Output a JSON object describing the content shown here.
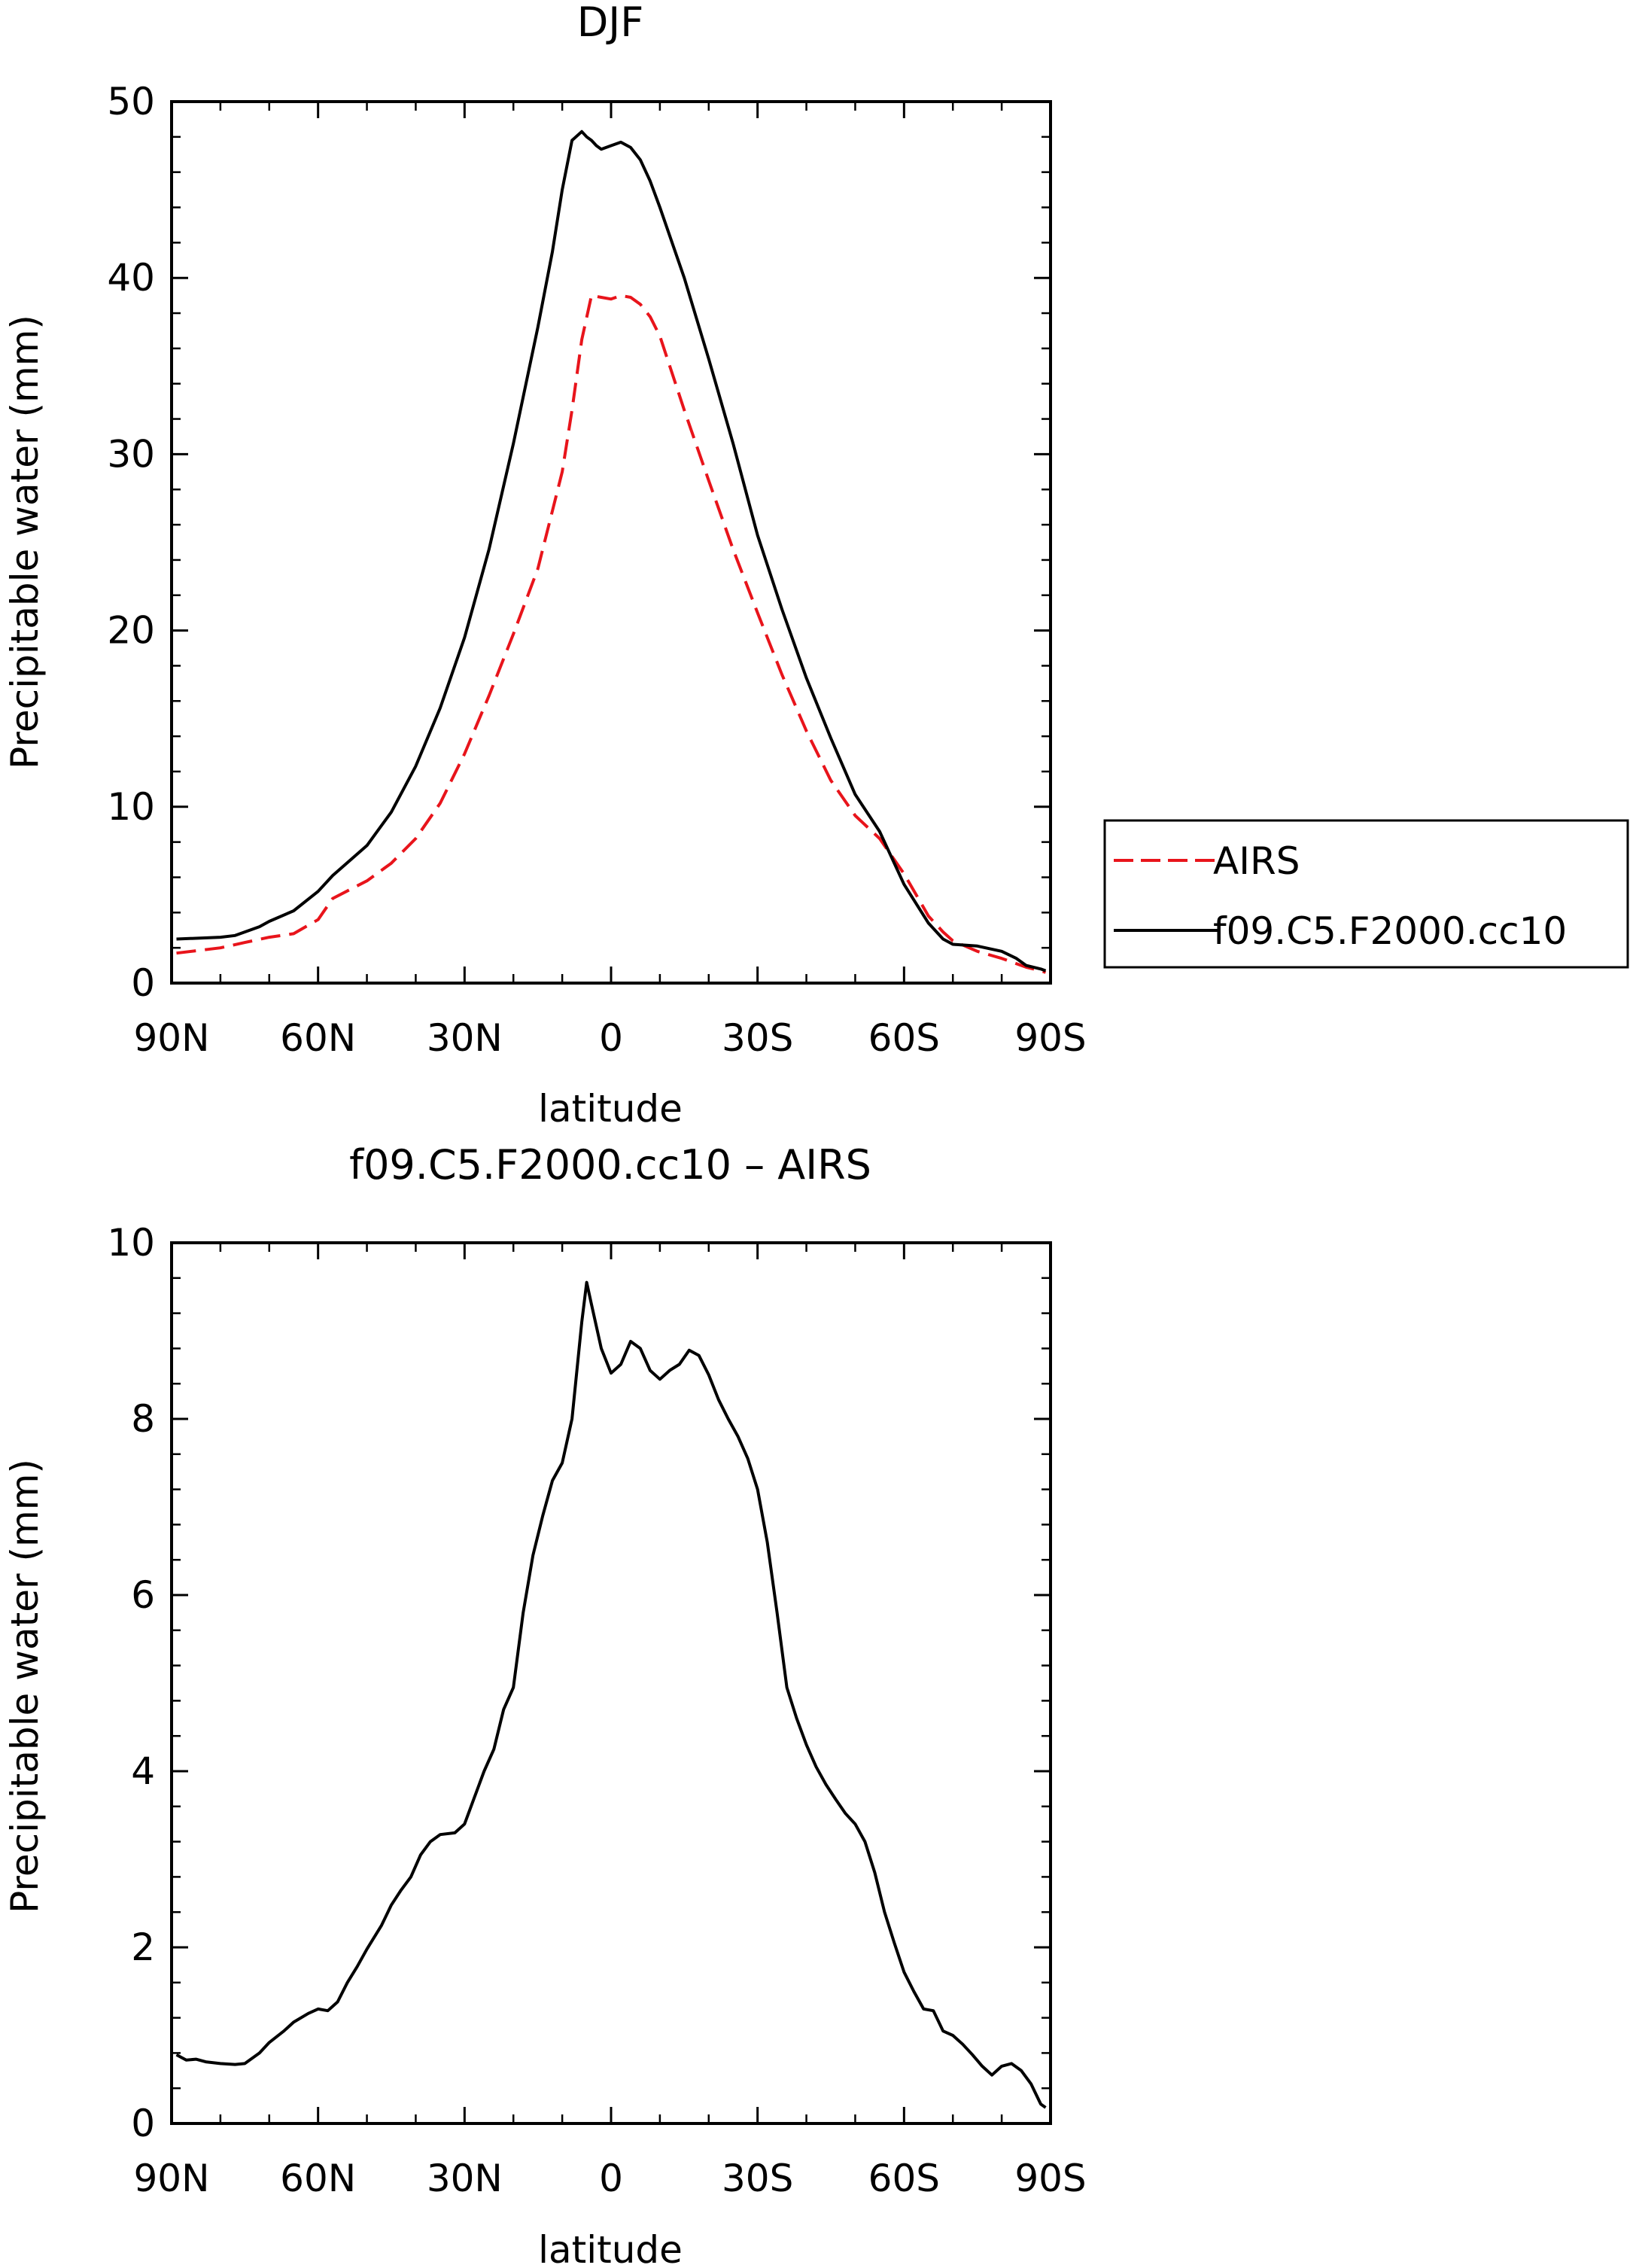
{
  "chart_data": [
    {
      "type": "line",
      "title": "DJF",
      "xlabel": "latitude",
      "ylabel": "Precipitable water  (mm)",
      "xlim": [
        -90,
        90
      ],
      "ylim": [
        0,
        50
      ],
      "x_ticks": [
        -90,
        -60,
        -30,
        0,
        30,
        60,
        90
      ],
      "x_tick_labels": [
        "90N",
        "60N",
        "30N",
        "0",
        "30S",
        "60S",
        "90S"
      ],
      "y_ticks": [
        0,
        10,
        20,
        30,
        40,
        50
      ],
      "y_tick_labels": [
        "0",
        "10",
        "20",
        "30",
        "40",
        "50"
      ],
      "legend_placement": "right",
      "series": [
        {
          "name": "AIRS",
          "color": "#e8141b",
          "dash": "dashed",
          "x": [
            -89,
            -80,
            -75,
            -70,
            -65,
            -60,
            -57,
            -50,
            -45,
            -40,
            -35,
            -30,
            -25,
            -20,
            -15,
            -10,
            -8,
            -6,
            -4,
            -2,
            0,
            2,
            4,
            6,
            8,
            10,
            15,
            20,
            25,
            30,
            35,
            40,
            45,
            50,
            55,
            60,
            65,
            68,
            70,
            75,
            80,
            85,
            88,
            89
          ],
          "y": [
            1.7,
            2.0,
            2.3,
            2.6,
            2.8,
            3.6,
            4.8,
            5.8,
            6.8,
            8.2,
            10.2,
            13.0,
            16.3,
            19.8,
            23.5,
            29.0,
            32.5,
            36.5,
            39.0,
            38.9,
            38.8,
            39.0,
            38.9,
            38.5,
            37.8,
            36.7,
            32.5,
            28.5,
            24.6,
            21.0,
            17.5,
            14.3,
            11.5,
            9.5,
            8.2,
            6.2,
            3.8,
            2.9,
            2.4,
            1.8,
            1.4,
            0.9,
            0.7,
            0.6
          ]
        },
        {
          "name": "f09.C5.F2000.cc10",
          "color": "#000000",
          "dash": "solid",
          "x": [
            -89,
            -80,
            -77,
            -75,
            -72,
            -70,
            -65,
            -60,
            -57,
            -50,
            -45,
            -40,
            -35,
            -30,
            -25,
            -20,
            -15,
            -12,
            -10,
            -8,
            -6,
            -5,
            -4,
            -3,
            -2,
            0,
            2,
            4,
            6,
            8,
            10,
            15,
            20,
            25,
            30,
            35,
            40,
            45,
            50,
            55,
            60,
            65,
            68,
            70,
            75,
            80,
            83,
            85,
            88,
            89
          ],
          "y": [
            2.5,
            2.6,
            2.7,
            2.9,
            3.2,
            3.5,
            4.1,
            5.2,
            6.1,
            7.8,
            9.7,
            12.3,
            15.6,
            19.6,
            24.6,
            30.6,
            37.2,
            41.5,
            45.0,
            47.8,
            48.3,
            48.0,
            47.8,
            47.5,
            47.3,
            47.5,
            47.7,
            47.4,
            46.7,
            45.5,
            44.0,
            40.0,
            35.4,
            30.6,
            25.4,
            21.2,
            17.3,
            13.9,
            10.7,
            8.6,
            5.6,
            3.4,
            2.5,
            2.2,
            2.1,
            1.8,
            1.4,
            1.0,
            0.8,
            0.7
          ]
        }
      ]
    },
    {
      "type": "line",
      "title": "f09.C5.F2000.cc10 – AIRS",
      "xlabel": "latitude",
      "ylabel": "Precipitable water  (mm)",
      "xlim": [
        -90,
        90
      ],
      "ylim": [
        0,
        10
      ],
      "x_ticks": [
        -90,
        -60,
        -30,
        0,
        30,
        60,
        90
      ],
      "x_tick_labels": [
        "90N",
        "60N",
        "30N",
        "0",
        "30S",
        "60S",
        "90S"
      ],
      "y_ticks": [
        0,
        2,
        4,
        6,
        8,
        10
      ],
      "y_tick_labels": [
        "0",
        "2",
        "4",
        "6",
        "8",
        "10"
      ],
      "series": [
        {
          "color": "#000000",
          "dash": "solid",
          "x": [
            -89,
            -87,
            -85,
            -83,
            -80,
            -77,
            -75,
            -72,
            -70,
            -67,
            -65,
            -62,
            -60,
            -58,
            -56,
            -54,
            -52,
            -50,
            -47,
            -45,
            -43,
            -41,
            -39,
            -37,
            -35,
            -32,
            -30,
            -28,
            -26,
            -24,
            -22,
            -20,
            -18,
            -16,
            -14,
            -12,
            -10,
            -8,
            -6,
            -5,
            -4,
            -2,
            0,
            2,
            4,
            6,
            8,
            10,
            12,
            14,
            16,
            18,
            20,
            22,
            24,
            26,
            28,
            30,
            32,
            34,
            36,
            38,
            40,
            42,
            44,
            46,
            48,
            50,
            52,
            54,
            56,
            58,
            60,
            62,
            64,
            66,
            68,
            70,
            72,
            74,
            76,
            78,
            80,
            82,
            84,
            86,
            88,
            89
          ],
          "y": [
            0.78,
            0.72,
            0.73,
            0.7,
            0.68,
            0.67,
            0.68,
            0.8,
            0.92,
            1.05,
            1.15,
            1.25,
            1.3,
            1.28,
            1.38,
            1.6,
            1.78,
            1.98,
            2.25,
            2.48,
            2.65,
            2.8,
            3.05,
            3.2,
            3.28,
            3.3,
            3.4,
            3.7,
            4.0,
            4.25,
            4.7,
            4.95,
            5.8,
            6.45,
            6.9,
            7.3,
            7.5,
            8.0,
            9.1,
            9.55,
            9.3,
            8.8,
            8.52,
            8.62,
            8.88,
            8.8,
            8.55,
            8.45,
            8.55,
            8.62,
            8.78,
            8.72,
            8.5,
            8.22,
            8.0,
            7.8,
            7.55,
            7.2,
            6.6,
            5.8,
            4.95,
            4.6,
            4.3,
            4.05,
            3.85,
            3.68,
            3.52,
            3.4,
            3.2,
            2.85,
            2.4,
            2.05,
            1.72,
            1.5,
            1.3,
            1.28,
            1.05,
            1.0,
            0.9,
            0.78,
            0.65,
            0.55,
            0.65,
            0.68,
            0.6,
            0.45,
            0.22,
            0.18
          ]
        }
      ]
    }
  ]
}
